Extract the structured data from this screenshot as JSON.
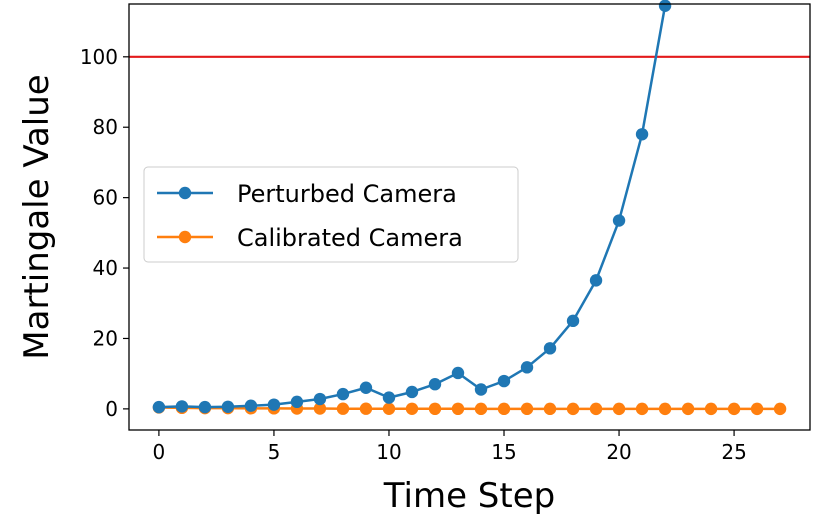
{
  "chart_data": {
    "type": "line",
    "title": "",
    "xlabel": "Time Step",
    "ylabel": "Martingale Value",
    "xlim": [
      -1.3,
      28.3
    ],
    "ylim": [
      -6,
      115
    ],
    "xticks": [
      0,
      5,
      10,
      15,
      20,
      25
    ],
    "yticks": [
      0,
      20,
      40,
      60,
      80,
      100
    ],
    "grid": false,
    "legend_position": "center-left",
    "threshold": {
      "value": 100,
      "color": "#e31a1c"
    },
    "series": [
      {
        "name": "Perturbed Camera",
        "color": "#1f77b4",
        "x": [
          0,
          1,
          2,
          3,
          4,
          5,
          6,
          7,
          8,
          9,
          10,
          11,
          12,
          13,
          14,
          15,
          16,
          17,
          18,
          19,
          20,
          21,
          22
        ],
        "values": [
          0.5,
          0.7,
          0.5,
          0.6,
          0.9,
          1.2,
          2.0,
          2.8,
          4.2,
          6.0,
          3.2,
          4.8,
          7.0,
          10.2,
          5.5,
          7.9,
          11.8,
          17.2,
          25.0,
          36.5,
          53.5,
          78.0,
          114.5
        ]
      },
      {
        "name": "Calibrated Camera",
        "color": "#ff7f0e",
        "x": [
          0,
          1,
          2,
          3,
          4,
          5,
          6,
          7,
          8,
          9,
          10,
          11,
          12,
          13,
          14,
          15,
          16,
          17,
          18,
          19,
          20,
          21,
          22,
          23,
          24,
          25,
          26,
          27
        ],
        "values": [
          0.4,
          0.3,
          0.2,
          0.2,
          0.15,
          0.15,
          0.1,
          0.1,
          0.05,
          0.05,
          0.03,
          0.03,
          0.02,
          0.02,
          0.01,
          0.01,
          0.01,
          0.01,
          0.0,
          0.0,
          0.0,
          0.0,
          0.0,
          0.0,
          0.0,
          0.0,
          0.0,
          0.0
        ]
      }
    ]
  }
}
